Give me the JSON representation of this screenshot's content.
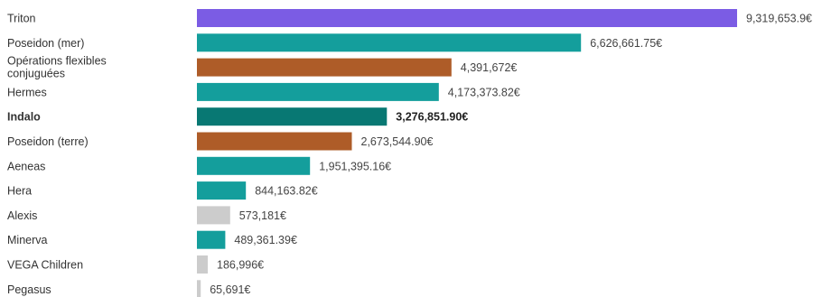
{
  "chart_data": {
    "type": "bar",
    "orientation": "horizontal",
    "title": "",
    "xlabel": "",
    "ylabel": "",
    "grid": false,
    "legend": "none",
    "categories": [
      "Triton",
      "Poseidon (mer)",
      "Opérations flexibles conjuguées",
      "Hermes",
      "Indalo",
      "Poseidon (terre)",
      "Aeneas",
      "Hera",
      "Alexis",
      "Minerva",
      "VEGA Children",
      "Pegasus"
    ],
    "values": [
      9319653.9,
      6626661.75,
      4391672,
      4173373.82,
      3276851.9,
      2673544.9,
      1951395.16,
      844163.82,
      573181,
      489361.39,
      186996,
      65691
    ],
    "value_labels": [
      "9,319,653.9€",
      "6,626,661.75€",
      "4,391,672€",
      "4,173,373.82€",
      "3,276,851.90€",
      "2,673,544.90€",
      "1,951,395.16€",
      "844,163.82€",
      "573,181€",
      "489,361.39€",
      "186,996€",
      "65,691€"
    ],
    "bar_colors": [
      "#7b5ce4",
      "#149e9c",
      "#ae5c28",
      "#149e9c",
      "#087873",
      "#ae5c28",
      "#149e9c",
      "#149e9c",
      "#cccccc",
      "#149e9c",
      "#cccccc",
      "#cccccc"
    ],
    "highlighted": "Indalo",
    "xlim": [
      0,
      9319653.9
    ]
  }
}
